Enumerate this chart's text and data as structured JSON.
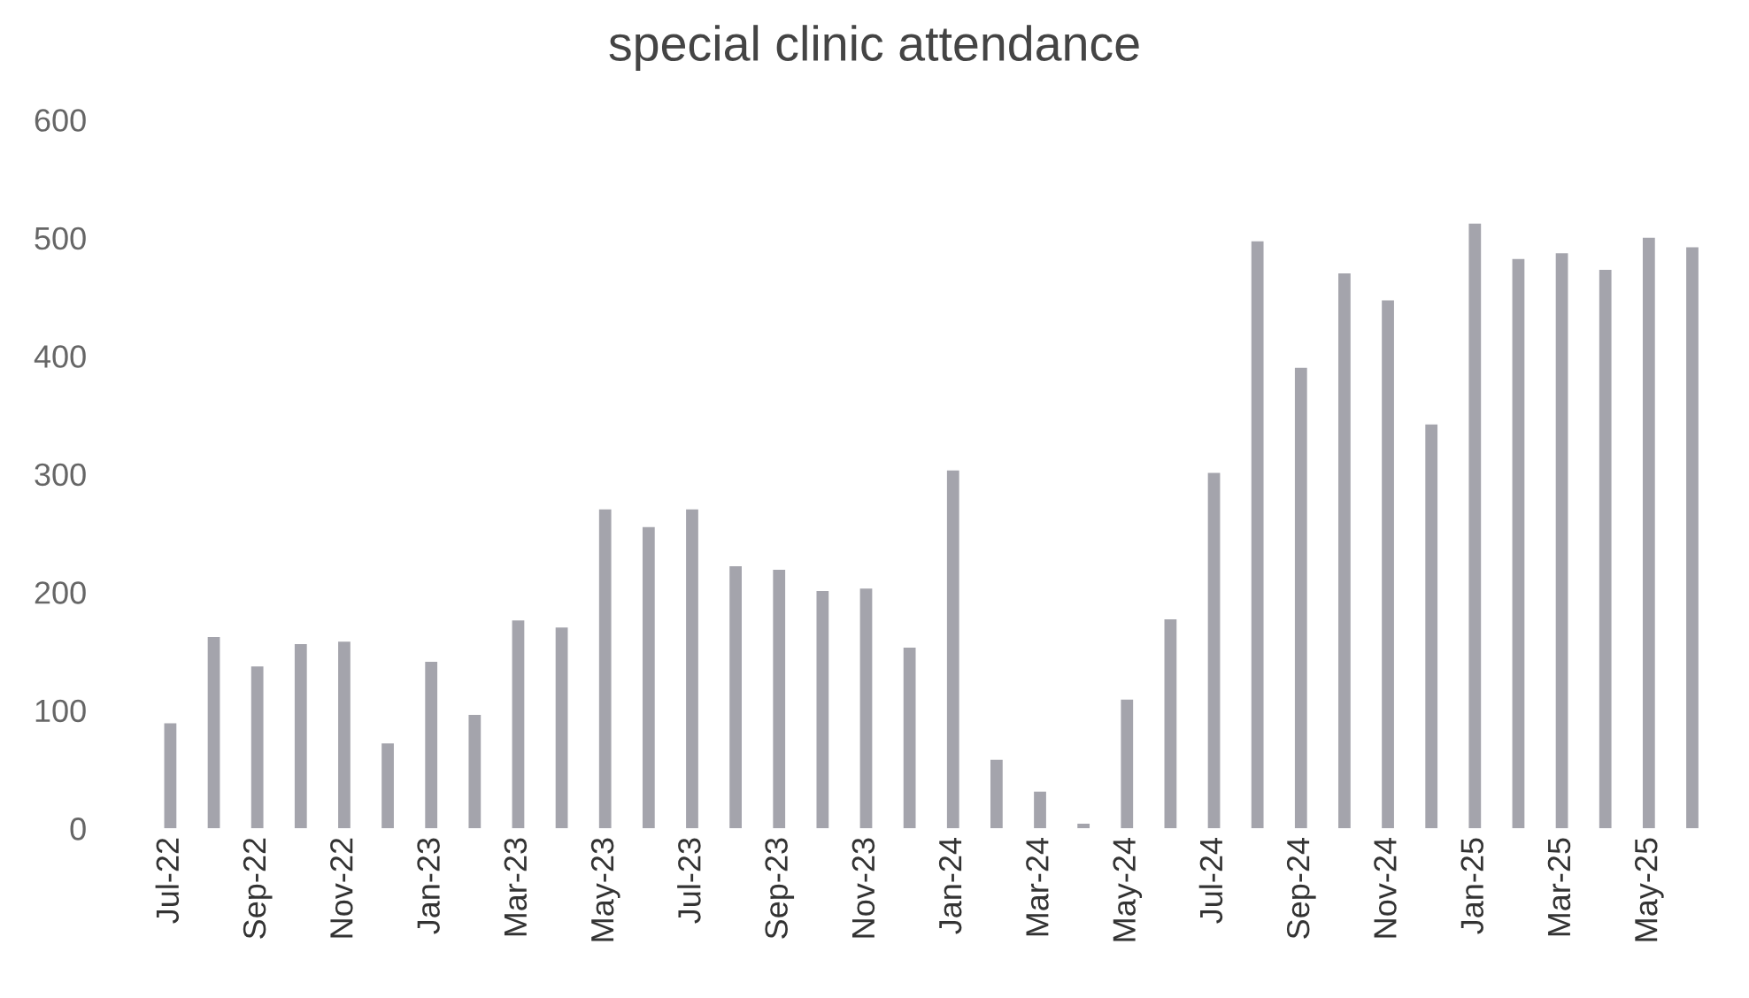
{
  "chart_data": {
    "type": "bar",
    "title": "special clinic attendance",
    "categories": [
      "Jul-22",
      null,
      "Sep-22",
      null,
      "Nov-22",
      null,
      "Jan-23",
      null,
      "Mar-23",
      null,
      "May-23",
      null,
      "Jul-23",
      null,
      "Sep-23",
      null,
      "Nov-23",
      null,
      "Jan-24",
      null,
      "Mar-24",
      null,
      "May-24",
      null,
      "Jul-24",
      null,
      "Sep-24",
      null,
      "Nov-24",
      null,
      "Jan-25",
      null,
      "Mar-25",
      null,
      "May-25",
      null
    ],
    "values": [
      89,
      162,
      137,
      156,
      158,
      72,
      141,
      96,
      176,
      170,
      270,
      255,
      270,
      222,
      219,
      201,
      203,
      153,
      303,
      58,
      31,
      4,
      109,
      177,
      301,
      497,
      390,
      470,
      447,
      342,
      512,
      482,
      487,
      473,
      500,
      492
    ],
    "color": "#a4a4ac",
    "ylim": [
      0,
      600
    ],
    "yticks": [
      0,
      100,
      200,
      300,
      400,
      500,
      600
    ],
    "grid": false
  }
}
